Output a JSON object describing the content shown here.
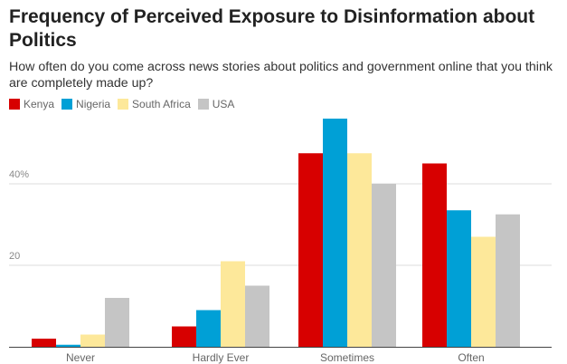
{
  "chart_data": {
    "type": "bar",
    "title": "Frequency of Perceived Exposure to Disinformation about Politics",
    "subtitle": "How often do you come across news stories about politics and government online that you think are completely made up?",
    "categories": [
      "Never",
      "Hardly Ever",
      "Sometimes",
      "Often"
    ],
    "series": [
      {
        "name": "Kenya",
        "color": "#d70000",
        "values": [
          2,
          5,
          47.5,
          45
        ]
      },
      {
        "name": "Nigeria",
        "color": "#00a0d6",
        "values": [
          0.5,
          9,
          56,
          33.5
        ]
      },
      {
        "name": "South Africa",
        "color": "#fde89a",
        "values": [
          3,
          21,
          47.5,
          27
        ]
      },
      {
        "name": "USA",
        "color": "#c5c5c5",
        "values": [
          12,
          15,
          40,
          32.5
        ]
      }
    ],
    "yticks": [
      {
        "value": 20,
        "label": "20"
      },
      {
        "value": 40,
        "label": "40%"
      }
    ],
    "ylim": [
      0,
      60
    ],
    "xlabel": "",
    "ylabel": "",
    "grid": true,
    "legend": "top-left"
  }
}
